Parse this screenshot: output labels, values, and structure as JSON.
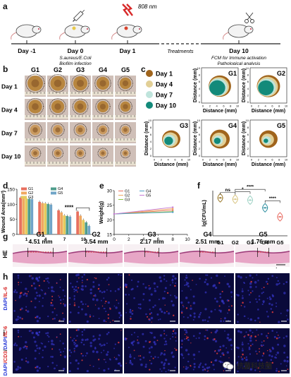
{
  "panels": {
    "a": {
      "label": "a",
      "laser": "808 nm",
      "timeline": [
        {
          "day": "Day -1",
          "note": ""
        },
        {
          "day": "Day 0",
          "note": "S.aureus/E.Coli\nBiofilm infection"
        },
        {
          "day": "Day 1",
          "note": ""
        },
        {
          "day": "",
          "note": "Treatments"
        },
        {
          "day": "Day 10",
          "note": "FCM for Immune activation\nPathological analysis"
        }
      ]
    },
    "b": {
      "label": "b",
      "groups": [
        "G1",
        "G2",
        "G3",
        "G4",
        "G5"
      ],
      "days": [
        "Day 1",
        "Day 4",
        "Day 7",
        "Day 10"
      ]
    },
    "c": {
      "label": "c",
      "legend": [
        {
          "name": "Day 1",
          "color": "#a0641c"
        },
        {
          "name": "Day 4",
          "color": "#e2cf96"
        },
        {
          "name": "Day 7",
          "color": "#bfe4dc"
        },
        {
          "name": "Day 10",
          "color": "#138a7a"
        }
      ],
      "ylabel": "Distance (mm)",
      "xlabel": "Distance (mm)",
      "ticks": [
        "0",
        "2",
        "4",
        "6",
        "8",
        "10"
      ],
      "groups": [
        "G1",
        "G2",
        "G3",
        "G4",
        "G5"
      ]
    },
    "g": {
      "label": "g",
      "side_label": "HE",
      "groups": [
        {
          "name": "G1",
          "value": "4.51 mm"
        },
        {
          "name": "G2",
          "value": "3.54 mm"
        },
        {
          "name": "G3",
          "value": "2.17 mm"
        },
        {
          "name": "G4",
          "value": "2.51 mm"
        },
        {
          "name": "G5",
          "value": "1.76 mm"
        }
      ],
      "scale": "1 mm"
    },
    "h": {
      "label": "h",
      "stain_parts": [
        "DAPI",
        "/IL-6"
      ]
    },
    "i": {
      "label": "i",
      "stain_parts": [
        "DAPI",
        "/CD3",
        "/",
        "DAPI",
        "/IL-6"
      ]
    }
  },
  "watermark": {
    "text": "抗菌科技圈"
  },
  "chart_data": [
    {
      "panel": "d",
      "type": "bar",
      "title": "",
      "xlabel": "Days",
      "ylabel": "Wound Area(mm²)",
      "categories": [
        "1",
        "4",
        "7",
        "10"
      ],
      "ylim": [
        0,
        150
      ],
      "yticks": [
        0,
        50,
        100,
        150
      ],
      "series": [
        {
          "name": "G1",
          "color": "#e8705f",
          "values": [
            122,
            108,
            80,
            76
          ]
        },
        {
          "name": "G2",
          "color": "#f0a860",
          "values": [
            121,
            104,
            73,
            62
          ]
        },
        {
          "name": "G3",
          "color": "#e5c95c",
          "values": [
            119,
            103,
            63,
            48
          ]
        },
        {
          "name": "G4",
          "color": "#4f9d8c",
          "values": [
            118,
            101,
            61,
            40
          ]
        },
        {
          "name": "G5",
          "color": "#6fa4c7",
          "values": [
            117,
            99,
            59,
            28
          ]
        }
      ],
      "annotation": "****"
    },
    {
      "panel": "e",
      "type": "line",
      "title": "",
      "xlabel": "Days",
      "ylabel": "Weight(g)",
      "xlim": [
        0,
        10
      ],
      "xticks": [
        0,
        2,
        4,
        6,
        8,
        10
      ],
      "ylim": [
        15,
        30
      ],
      "yticks": [
        15,
        20,
        25,
        30
      ],
      "series": [
        {
          "name": "G1",
          "color": "#e8705f",
          "x": [
            0,
            8
          ],
          "y": [
            22,
            23.3
          ]
        },
        {
          "name": "G2",
          "color": "#f0a860",
          "x": [
            0,
            8
          ],
          "y": [
            22,
            23.8
          ]
        },
        {
          "name": "G3",
          "color": "#8cc640",
          "x": [
            0,
            8
          ],
          "y": [
            22,
            22.8
          ]
        },
        {
          "name": "G4",
          "color": "#4f9dc7",
          "x": [
            0,
            8
          ],
          "y": [
            22,
            22.6
          ]
        },
        {
          "name": "G5",
          "color": "#c77ad6",
          "x": [
            0,
            8
          ],
          "y": [
            22,
            24.3
          ]
        }
      ]
    },
    {
      "panel": "f",
      "type": "scatter",
      "title": "",
      "ylabel": "lg(CFU/mL)",
      "categories": [
        "G1",
        "G2",
        "G3",
        "G4",
        "G5"
      ],
      "ylim": [
        0,
        10
      ],
      "colors": [
        "#9b7a2c",
        "#d8c480",
        "#9fd3c5",
        "#2e8fa0",
        "#e86a60"
      ],
      "values": [
        8.4,
        8.1,
        7.9,
        6.2,
        4.2
      ],
      "significance": [
        "ns",
        "*",
        "****",
        "****"
      ]
    }
  ]
}
